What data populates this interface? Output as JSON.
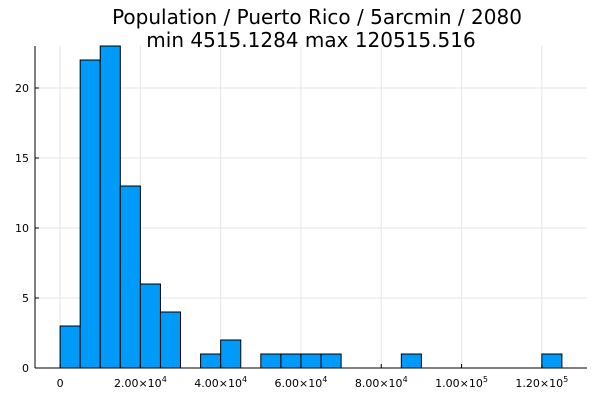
{
  "chart_data": {
    "type": "bar",
    "title_lines": [
      "Population / Puerto Rico / 5arcmin / 2080",
      "min 4515.1284  max 120515.516"
    ],
    "xlabel": "",
    "ylabel": "",
    "bin_width": 5000,
    "bins": [
      {
        "x0": 0,
        "x1": 5000,
        "count": 3
      },
      {
        "x0": 5000,
        "x1": 10000,
        "count": 22
      },
      {
        "x0": 10000,
        "x1": 15000,
        "count": 23
      },
      {
        "x0": 15000,
        "x1": 20000,
        "count": 13
      },
      {
        "x0": 20000,
        "x1": 25000,
        "count": 6
      },
      {
        "x0": 25000,
        "x1": 30000,
        "count": 4
      },
      {
        "x0": 30000,
        "x1": 35000,
        "count": 0
      },
      {
        "x0": 35000,
        "x1": 40000,
        "count": 1
      },
      {
        "x0": 40000,
        "x1": 45000,
        "count": 2
      },
      {
        "x0": 45000,
        "x1": 50000,
        "count": 0
      },
      {
        "x0": 50000,
        "x1": 55000,
        "count": 1
      },
      {
        "x0": 55000,
        "x1": 60000,
        "count": 1
      },
      {
        "x0": 60000,
        "x1": 65000,
        "count": 1
      },
      {
        "x0": 65000,
        "x1": 70000,
        "count": 1
      },
      {
        "x0": 70000,
        "x1": 75000,
        "count": 0
      },
      {
        "x0": 75000,
        "x1": 80000,
        "count": 0
      },
      {
        "x0": 80000,
        "x1": 85000,
        "count": 0
      },
      {
        "x0": 85000,
        "x1": 90000,
        "count": 1
      },
      {
        "x0": 90000,
        "x1": 95000,
        "count": 0
      },
      {
        "x0": 95000,
        "x1": 100000,
        "count": 0
      },
      {
        "x0": 100000,
        "x1": 105000,
        "count": 0
      },
      {
        "x0": 105000,
        "x1": 110000,
        "count": 0
      },
      {
        "x0": 110000,
        "x1": 115000,
        "count": 0
      },
      {
        "x0": 115000,
        "x1": 120000,
        "count": 0
      },
      {
        "x0": 120000,
        "x1": 125000,
        "count": 1
      }
    ],
    "x_ticks": [
      {
        "value": 0,
        "mantissa": "0",
        "exponent": ""
      },
      {
        "value": 20000,
        "mantissa": "2.00×10",
        "exponent": "4"
      },
      {
        "value": 40000,
        "mantissa": "4.00×10",
        "exponent": "4"
      },
      {
        "value": 60000,
        "mantissa": "6.00×10",
        "exponent": "4"
      },
      {
        "value": 80000,
        "mantissa": "8.00×10",
        "exponent": "4"
      },
      {
        "value": 100000,
        "mantissa": "1.00×10",
        "exponent": "5"
      },
      {
        "value": 120000,
        "mantissa": "1.20×10",
        "exponent": "5"
      }
    ],
    "y_ticks": [
      0,
      5,
      10,
      15,
      20
    ],
    "xlim": [
      -6250,
      131250
    ],
    "ylim": [
      0,
      23
    ],
    "grid": true,
    "legend": "none",
    "colors": {
      "bar_fill": "#009af9",
      "bar_edge": "#000000",
      "grid": "#e6e6e6",
      "axis": "#000000"
    }
  }
}
